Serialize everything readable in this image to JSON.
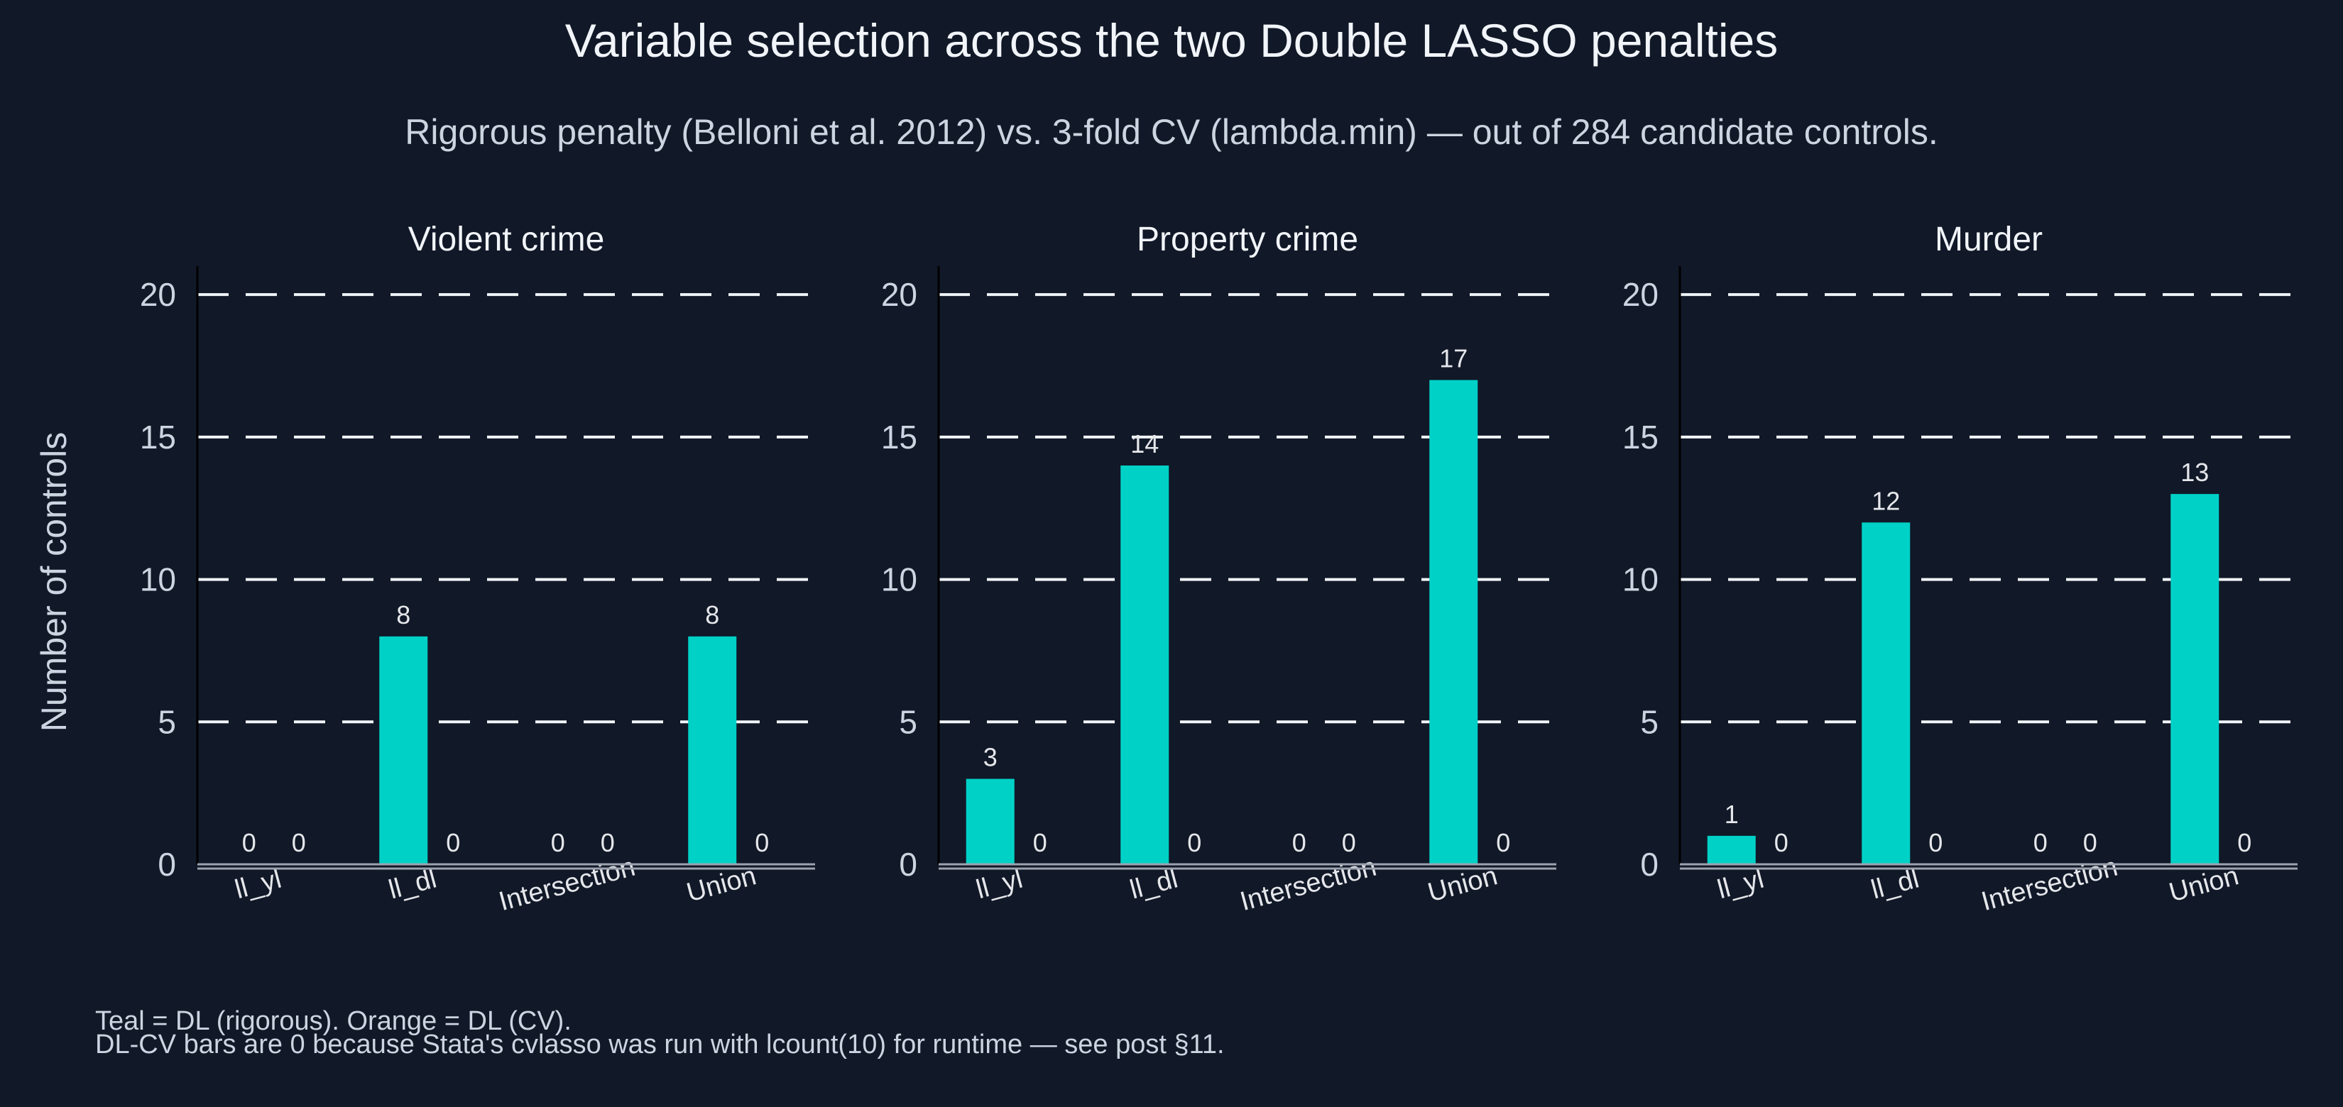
{
  "title": "Variable selection across the two Double LASSO penalties",
  "subtitle": "Rigorous penalty (Belloni et al. 2012) vs. 3-fold CV (lambda.min) — out of 284 candidate controls.",
  "ylabel": "Number of controls",
  "notes": [
    "Teal = DL (rigorous). Orange = DL (CV).",
    "DL-CV bars are 0 because Stata's cvlasso was run with lcount(10) for runtime — see post §11."
  ],
  "colors": {
    "rigorous": "#00d1c7",
    "cv": "#f97316"
  },
  "chart_data": [
    {
      "type": "bar",
      "title": "Violent crime",
      "categories": [
        "ll_yl",
        "ll_dl",
        "Intersection",
        "Union"
      ],
      "series": [
        {
          "name": "DL (rigorous)",
          "values": [
            0,
            8,
            0,
            8
          ]
        },
        {
          "name": "DL (CV)",
          "values": [
            0,
            0,
            0,
            0
          ]
        }
      ],
      "ylim": [
        0,
        21
      ],
      "yticks": [
        0,
        5,
        10,
        15,
        20
      ],
      "grid": true
    },
    {
      "type": "bar",
      "title": "Property crime",
      "categories": [
        "ll_yl",
        "ll_dl",
        "Intersection",
        "Union"
      ],
      "series": [
        {
          "name": "DL (rigorous)",
          "values": [
            3,
            14,
            0,
            17
          ]
        },
        {
          "name": "DL (CV)",
          "values": [
            0,
            0,
            0,
            0
          ]
        }
      ],
      "ylim": [
        0,
        21
      ],
      "yticks": [
        0,
        5,
        10,
        15,
        20
      ],
      "grid": true
    },
    {
      "type": "bar",
      "title": "Murder",
      "categories": [
        "ll_yl",
        "ll_dl",
        "Intersection",
        "Union"
      ],
      "series": [
        {
          "name": "DL (rigorous)",
          "values": [
            1,
            12,
            0,
            13
          ]
        },
        {
          "name": "DL (CV)",
          "values": [
            0,
            0,
            0,
            0
          ]
        }
      ],
      "ylim": [
        0,
        21
      ],
      "yticks": [
        0,
        5,
        10,
        15,
        20
      ],
      "grid": true
    }
  ]
}
